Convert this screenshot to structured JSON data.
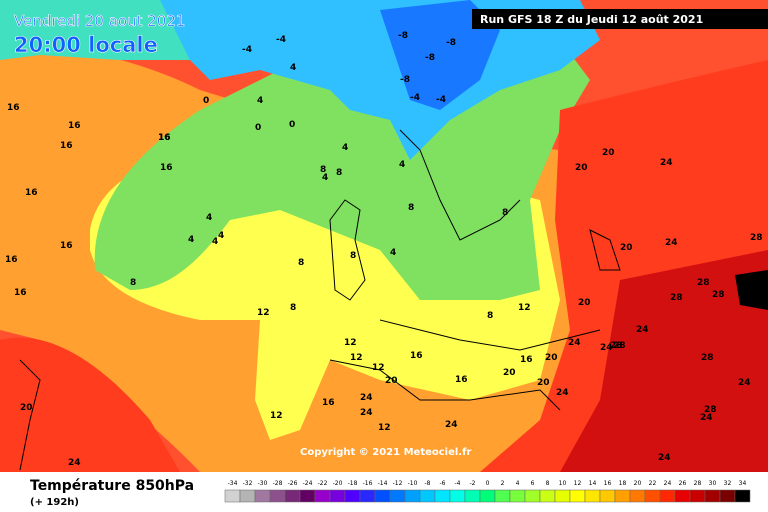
{
  "header": {
    "date": "Vendredi 20 aout 2021",
    "time": "20:00 locale",
    "run": "Run GFS 18 Z du Jeudi 12 août 2021",
    "copyright": "Copyright © 2021 Meteociel.fr"
  },
  "footer": {
    "title": "Température 850hPa",
    "lead": "(+ 192h)"
  },
  "legend": {
    "values": [
      -34,
      -32,
      -30,
      -28,
      -26,
      -24,
      -22,
      -20,
      -18,
      -16,
      -14,
      -12,
      -10,
      -8,
      -6,
      -4,
      -2,
      0,
      2,
      4,
      6,
      8,
      10,
      12,
      14,
      16,
      18,
      20,
      22,
      24,
      26,
      28,
      30,
      32,
      34
    ],
    "colors": [
      "#d2d2d2",
      "#b4b4b4",
      "#a078a0",
      "#8c508c",
      "#782878",
      "#640064",
      "#9600c8",
      "#7800dc",
      "#5000ff",
      "#2828ff",
      "#0050ff",
      "#0078ff",
      "#00a0ff",
      "#00c8ff",
      "#00e6ff",
      "#00ffe6",
      "#00ffb4",
      "#00ff78",
      "#50ff50",
      "#78ff3c",
      "#a0ff28",
      "#c8ff14",
      "#e6ff00",
      "#ffff00",
      "#ffe600",
      "#ffc800",
      "#ffa000",
      "#ff7800",
      "#ff5000",
      "#ff2800",
      "#e60000",
      "#c80000",
      "#a00000",
      "#780000",
      "#000000"
    ]
  },
  "map_labels": [
    -8,
    -8,
    -4,
    -4,
    -4,
    -8,
    -8,
    -4,
    16,
    16,
    16,
    16,
    16,
    4,
    4,
    0,
    0,
    4,
    0,
    4,
    8,
    8,
    4,
    4,
    4,
    16,
    4,
    4,
    4,
    16,
    8,
    8,
    8,
    8,
    12,
    8,
    12,
    12,
    12,
    16,
    16,
    20,
    24,
    24,
    16,
    20,
    20,
    20,
    24,
    24,
    24,
    24,
    24,
    28,
    28,
    28,
    28,
    20,
    28,
    24,
    28,
    24,
    20,
    16,
    16,
    16,
    24,
    28,
    24,
    24,
    20,
    28,
    28,
    24,
    16,
    12,
    12,
    8,
    8,
    20,
    20,
    12
  ]
}
